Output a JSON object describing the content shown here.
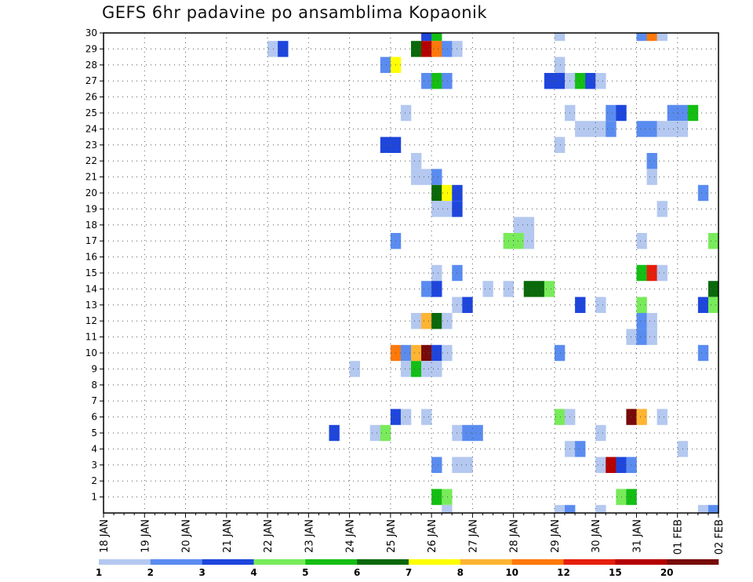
{
  "chart_data": {
    "type": "heatmap",
    "title": "GEFS 6hr padavine po ansamblima Kopaonik",
    "xlabel": "",
    "ylabel": "",
    "x_start": "18 JAN",
    "x_end": "02 FEB",
    "x_step_hours": 6,
    "x_ticks": [
      "18 JAN",
      "19 JAN",
      "20 JAN",
      "21 JAN",
      "22 JAN",
      "23 JAN",
      "24 JAN",
      "25 JAN",
      "26 JAN",
      "27 JAN",
      "28 JAN",
      "29 JAN",
      "30 JAN",
      "31 JAN",
      "01 FEB",
      "02 FEB"
    ],
    "y_ticks": [
      1,
      2,
      3,
      4,
      5,
      6,
      7,
      8,
      9,
      10,
      11,
      12,
      13,
      14,
      15,
      16,
      17,
      18,
      19,
      20,
      21,
      22,
      23,
      24,
      25,
      26,
      27,
      28,
      29,
      30
    ],
    "ylim": [
      0,
      30
    ],
    "grid": true,
    "colorbar": {
      "placement": "bottom",
      "labels": [
        "1",
        "2",
        "3",
        "4",
        "5",
        "6",
        "7",
        "8",
        "10",
        "12",
        "15",
        "20"
      ],
      "colors": [
        "#b4c8f0",
        "#5a8cf0",
        "#1e46dc",
        "#78eb5a",
        "#14be14",
        "#0a690a",
        "#ffff00",
        "#ffb432",
        "#ff780a",
        "#e61e0a",
        "#b40000",
        "#780a0a"
      ]
    },
    "cells": [
      {
        "member": 30,
        "x": "25 JAN 18Z",
        "v": 3
      },
      {
        "member": 30,
        "x": "26 JAN 00Z",
        "v": 5
      },
      {
        "member": 30,
        "x": "29 JAN 00Z",
        "v": 1
      },
      {
        "member": 30,
        "x": "31 JAN 00Z",
        "v": 2
      },
      {
        "member": 30,
        "x": "31 JAN 06Z",
        "v": 10
      },
      {
        "member": 30,
        "x": "31 JAN 12Z",
        "v": 1
      },
      {
        "member": 29,
        "x": "22 JAN 00Z",
        "v": 1
      },
      {
        "member": 29,
        "x": "22 JAN 06Z",
        "v": 3
      },
      {
        "member": 29,
        "x": "25 JAN 12Z",
        "v": 6
      },
      {
        "member": 29,
        "x": "25 JAN 18Z",
        "v": 15
      },
      {
        "member": 29,
        "x": "26 JAN 00Z",
        "v": 10
      },
      {
        "member": 29,
        "x": "26 JAN 06Z",
        "v": 2
      },
      {
        "member": 29,
        "x": "26 JAN 12Z",
        "v": 1
      },
      {
        "member": 28,
        "x": "24 JAN 18Z",
        "v": 2
      },
      {
        "member": 28,
        "x": "25 JAN 00Z",
        "v": 7
      },
      {
        "member": 28,
        "x": "29 JAN 00Z",
        "v": 1
      },
      {
        "member": 27,
        "x": "25 JAN 18Z",
        "v": 2
      },
      {
        "member": 27,
        "x": "26 JAN 00Z",
        "v": 5
      },
      {
        "member": 27,
        "x": "26 JAN 06Z",
        "v": 2
      },
      {
        "member": 27,
        "x": "28 JAN 18Z",
        "v": 3
      },
      {
        "member": 27,
        "x": "29 JAN 00Z",
        "v": 3
      },
      {
        "member": 27,
        "x": "29 JAN 06Z",
        "v": 1
      },
      {
        "member": 27,
        "x": "29 JAN 12Z",
        "v": 5
      },
      {
        "member": 27,
        "x": "29 JAN 18Z",
        "v": 3
      },
      {
        "member": 27,
        "x": "30 JAN 00Z",
        "v": 1
      },
      {
        "member": 25,
        "x": "25 JAN 06Z",
        "v": 1
      },
      {
        "member": 25,
        "x": "29 JAN 06Z",
        "v": 1
      },
      {
        "member": 25,
        "x": "30 JAN 06Z",
        "v": 2
      },
      {
        "member": 25,
        "x": "30 JAN 12Z",
        "v": 3
      },
      {
        "member": 25,
        "x": "31 JAN 18Z",
        "v": 2
      },
      {
        "member": 25,
        "x": "01 FEB 00Z",
        "v": 2
      },
      {
        "member": 25,
        "x": "01 FEB 06Z",
        "v": 5
      },
      {
        "member": 24,
        "x": "29 JAN 12Z",
        "v": 1
      },
      {
        "member": 24,
        "x": "29 JAN 18Z",
        "v": 1
      },
      {
        "member": 24,
        "x": "30 JAN 00Z",
        "v": 1
      },
      {
        "member": 24,
        "x": "30 JAN 06Z",
        "v": 2
      },
      {
        "member": 24,
        "x": "31 JAN 00Z",
        "v": 2
      },
      {
        "member": 24,
        "x": "31 JAN 06Z",
        "v": 2
      },
      {
        "member": 24,
        "x": "31 JAN 12Z",
        "v": 1
      },
      {
        "member": 24,
        "x": "31 JAN 18Z",
        "v": 1
      },
      {
        "member": 24,
        "x": "01 FEB 00Z",
        "v": 1
      },
      {
        "member": 23,
        "x": "24 JAN 18Z",
        "v": 3
      },
      {
        "member": 23,
        "x": "25 JAN 00Z",
        "v": 3
      },
      {
        "member": 23,
        "x": "29 JAN 00Z",
        "v": 1
      },
      {
        "member": 22,
        "x": "25 JAN 12Z",
        "v": 1
      },
      {
        "member": 22,
        "x": "31 JAN 06Z",
        "v": 2
      },
      {
        "member": 21,
        "x": "25 JAN 12Z",
        "v": 1
      },
      {
        "member": 21,
        "x": "25 JAN 18Z",
        "v": 1
      },
      {
        "member": 21,
        "x": "26 JAN 00Z",
        "v": 2
      },
      {
        "member": 21,
        "x": "31 JAN 06Z",
        "v": 1
      },
      {
        "member": 20,
        "x": "26 JAN 00Z",
        "v": 6
      },
      {
        "member": 20,
        "x": "26 JAN 06Z",
        "v": 7
      },
      {
        "member": 20,
        "x": "26 JAN 12Z",
        "v": 3
      },
      {
        "member": 20,
        "x": "01 FEB 12Z",
        "v": 2
      },
      {
        "member": 19,
        "x": "26 JAN 00Z",
        "v": 1
      },
      {
        "member": 19,
        "x": "26 JAN 06Z",
        "v": 1
      },
      {
        "member": 19,
        "x": "26 JAN 12Z",
        "v": 3
      },
      {
        "member": 19,
        "x": "31 JAN 12Z",
        "v": 1
      },
      {
        "member": 18,
        "x": "28 JAN 00Z",
        "v": 1
      },
      {
        "member": 18,
        "x": "28 JAN 06Z",
        "v": 1
      },
      {
        "member": 17,
        "x": "25 JAN 00Z",
        "v": 2
      },
      {
        "member": 17,
        "x": "27 JAN 18Z",
        "v": 4
      },
      {
        "member": 17,
        "x": "28 JAN 00Z",
        "v": 4
      },
      {
        "member": 17,
        "x": "28 JAN 06Z",
        "v": 1
      },
      {
        "member": 17,
        "x": "31 JAN 00Z",
        "v": 1
      },
      {
        "member": 17,
        "x": "01 FEB 18Z",
        "v": 4
      },
      {
        "member": 15,
        "x": "26 JAN 00Z",
        "v": 1
      },
      {
        "member": 15,
        "x": "26 JAN 12Z",
        "v": 2
      },
      {
        "member": 15,
        "x": "31 JAN 00Z",
        "v": 5
      },
      {
        "member": 15,
        "x": "31 JAN 06Z",
        "v": 12
      },
      {
        "member": 15,
        "x": "31 JAN 12Z",
        "v": 1
      },
      {
        "member": 14,
        "x": "25 JAN 18Z",
        "v": 2
      },
      {
        "member": 14,
        "x": "26 JAN 00Z",
        "v": 3
      },
      {
        "member": 14,
        "x": "27 JAN 06Z",
        "v": 1
      },
      {
        "member": 14,
        "x": "27 JAN 18Z",
        "v": 1
      },
      {
        "member": 14,
        "x": "28 JAN 06Z",
        "v": 6
      },
      {
        "member": 14,
        "x": "28 JAN 12Z",
        "v": 6
      },
      {
        "member": 14,
        "x": "28 JAN 18Z",
        "v": 4
      },
      {
        "member": 14,
        "x": "01 FEB 18Z",
        "v": 6
      },
      {
        "member": 13,
        "x": "26 JAN 12Z",
        "v": 1
      },
      {
        "member": 13,
        "x": "26 JAN 18Z",
        "v": 3
      },
      {
        "member": 13,
        "x": "29 JAN 12Z",
        "v": 3
      },
      {
        "member": 13,
        "x": "30 JAN 00Z",
        "v": 1
      },
      {
        "member": 13,
        "x": "31 JAN 00Z",
        "v": 4
      },
      {
        "member": 13,
        "x": "01 FEB 12Z",
        "v": 3
      },
      {
        "member": 13,
        "x": "01 FEB 18Z",
        "v": 4
      },
      {
        "member": 12,
        "x": "25 JAN 12Z",
        "v": 1
      },
      {
        "member": 12,
        "x": "25 JAN 18Z",
        "v": 8
      },
      {
        "member": 12,
        "x": "26 JAN 00Z",
        "v": 6
      },
      {
        "member": 12,
        "x": "26 JAN 06Z",
        "v": 1
      },
      {
        "member": 12,
        "x": "31 JAN 00Z",
        "v": 2
      },
      {
        "member": 12,
        "x": "31 JAN 06Z",
        "v": 1
      },
      {
        "member": 11,
        "x": "30 JAN 18Z",
        "v": 1
      },
      {
        "member": 11,
        "x": "31 JAN 00Z",
        "v": 2
      },
      {
        "member": 11,
        "x": "31 JAN 06Z",
        "v": 1
      },
      {
        "member": 10,
        "x": "25 JAN 00Z",
        "v": 10
      },
      {
        "member": 10,
        "x": "25 JAN 06Z",
        "v": 2
      },
      {
        "member": 10,
        "x": "25 JAN 12Z",
        "v": 8
      },
      {
        "member": 10,
        "x": "25 JAN 18Z",
        "v": 20
      },
      {
        "member": 10,
        "x": "26 JAN 00Z",
        "v": 3
      },
      {
        "member": 10,
        "x": "26 JAN 06Z",
        "v": 1
      },
      {
        "member": 10,
        "x": "29 JAN 00Z",
        "v": 2
      },
      {
        "member": 10,
        "x": "01 FEB 12Z",
        "v": 2
      },
      {
        "member": 9,
        "x": "24 JAN 00Z",
        "v": 1
      },
      {
        "member": 9,
        "x": "25 JAN 06Z",
        "v": 1
      },
      {
        "member": 9,
        "x": "25 JAN 12Z",
        "v": 5
      },
      {
        "member": 9,
        "x": "25 JAN 18Z",
        "v": 1
      },
      {
        "member": 9,
        "x": "26 JAN 00Z",
        "v": 1
      },
      {
        "member": 6,
        "x": "25 JAN 00Z",
        "v": 3
      },
      {
        "member": 6,
        "x": "25 JAN 06Z",
        "v": 1
      },
      {
        "member": 6,
        "x": "25 JAN 18Z",
        "v": 1
      },
      {
        "member": 6,
        "x": "29 JAN 00Z",
        "v": 4
      },
      {
        "member": 6,
        "x": "29 JAN 06Z",
        "v": 1
      },
      {
        "member": 6,
        "x": "30 JAN 18Z",
        "v": 20
      },
      {
        "member": 6,
        "x": "31 JAN 00Z",
        "v": 8
      },
      {
        "member": 6,
        "x": "31 JAN 12Z",
        "v": 1
      },
      {
        "member": 5,
        "x": "23 JAN 12Z",
        "v": 3
      },
      {
        "member": 5,
        "x": "24 JAN 12Z",
        "v": 1
      },
      {
        "member": 5,
        "x": "24 JAN 18Z",
        "v": 4
      },
      {
        "member": 5,
        "x": "26 JAN 12Z",
        "v": 1
      },
      {
        "member": 5,
        "x": "26 JAN 18Z",
        "v": 2
      },
      {
        "member": 5,
        "x": "27 JAN 00Z",
        "v": 2
      },
      {
        "member": 5,
        "x": "30 JAN 00Z",
        "v": 1
      },
      {
        "member": 4,
        "x": "29 JAN 06Z",
        "v": 1
      },
      {
        "member": 4,
        "x": "29 JAN 12Z",
        "v": 2
      },
      {
        "member": 4,
        "x": "01 FEB 00Z",
        "v": 1
      },
      {
        "member": 3,
        "x": "26 JAN 00Z",
        "v": 2
      },
      {
        "member": 3,
        "x": "26 JAN 12Z",
        "v": 1
      },
      {
        "member": 3,
        "x": "26 JAN 18Z",
        "v": 1
      },
      {
        "member": 3,
        "x": "30 JAN 00Z",
        "v": 1
      },
      {
        "member": 3,
        "x": "30 JAN 06Z",
        "v": 15
      },
      {
        "member": 3,
        "x": "30 JAN 12Z",
        "v": 3
      },
      {
        "member": 3,
        "x": "30 JAN 18Z",
        "v": 2
      },
      {
        "member": 1,
        "x": "26 JAN 00Z",
        "v": 5
      },
      {
        "member": 1,
        "x": "26 JAN 06Z",
        "v": 4
      },
      {
        "member": 1,
        "x": "30 JAN 12Z",
        "v": 4
      },
      {
        "member": 1,
        "x": "30 JAN 18Z",
        "v": 5
      },
      {
        "member": 0,
        "x": "26 JAN 06Z",
        "v": 1
      },
      {
        "member": 0,
        "x": "29 JAN 00Z",
        "v": 1
      },
      {
        "member": 0,
        "x": "29 JAN 06Z",
        "v": 2
      },
      {
        "member": 0,
        "x": "30 JAN 00Z",
        "v": 1
      },
      {
        "member": 0,
        "x": "01 FEB 12Z",
        "v": 1
      },
      {
        "member": 0,
        "x": "01 FEB 18Z",
        "v": 2
      }
    ]
  }
}
